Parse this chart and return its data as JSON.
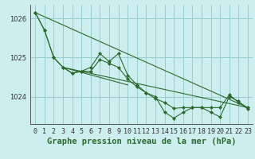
{
  "background_color": "#cceeee",
  "grid_color": "#99cccc",
  "line_color": "#2d6a2d",
  "marker_color": "#2d6a2d",
  "xlabel": "Graphe pression niveau de la mer (hPa)",
  "xlabel_fontsize": 7.5,
  "tick_fontsize": 6,
  "ylim": [
    1023.3,
    1026.35
  ],
  "xlim": [
    -0.5,
    23.5
  ],
  "yticks": [
    1024,
    1025,
    1026
  ],
  "xticks": [
    0,
    1,
    2,
    3,
    4,
    5,
    6,
    7,
    8,
    9,
    10,
    11,
    12,
    13,
    14,
    15,
    16,
    17,
    18,
    19,
    20,
    21,
    22,
    23
  ],
  "series_lines": [
    {
      "x": [
        0,
        1,
        2,
        3,
        4,
        5,
        6,
        7,
        8,
        9,
        10,
        11,
        12,
        13,
        14,
        15,
        16,
        17,
        18,
        19,
        20,
        21,
        22,
        23
      ],
      "y": [
        1026.15,
        1025.7,
        1025.0,
        1024.75,
        1024.6,
        1024.65,
        1024.65,
        1024.95,
        1024.85,
        1024.75,
        1024.45,
        1024.25,
        1024.1,
        1023.95,
        1023.85,
        1023.7,
        1023.72,
        1023.72,
        1023.72,
        1023.72,
        1023.72,
        1024.05,
        1023.85,
        1023.72
      ]
    },
    {
      "x": [
        0,
        1,
        2,
        3,
        4,
        5,
        6,
        7,
        8,
        9,
        10,
        11,
        12,
        13,
        14,
        15,
        16,
        17,
        18,
        19,
        20,
        21,
        22,
        23
      ],
      "y": [
        1026.15,
        1025.7,
        1025.0,
        1024.75,
        1024.6,
        1024.65,
        1024.75,
        1025.1,
        1024.9,
        1025.1,
        1024.55,
        1024.3,
        1024.1,
        1024.0,
        1023.6,
        1023.45,
        1023.6,
        1023.72,
        1023.72,
        1023.6,
        1023.48,
        1024.0,
        1023.88,
        1023.68
      ]
    }
  ],
  "series_straight": [
    {
      "x": [
        0,
        23
      ],
      "y": [
        1026.15,
        1023.72
      ]
    },
    {
      "x": [
        3,
        23
      ],
      "y": [
        1024.75,
        1023.72
      ]
    },
    {
      "x": [
        3,
        10
      ],
      "y": [
        1024.75,
        1024.3
      ]
    }
  ]
}
